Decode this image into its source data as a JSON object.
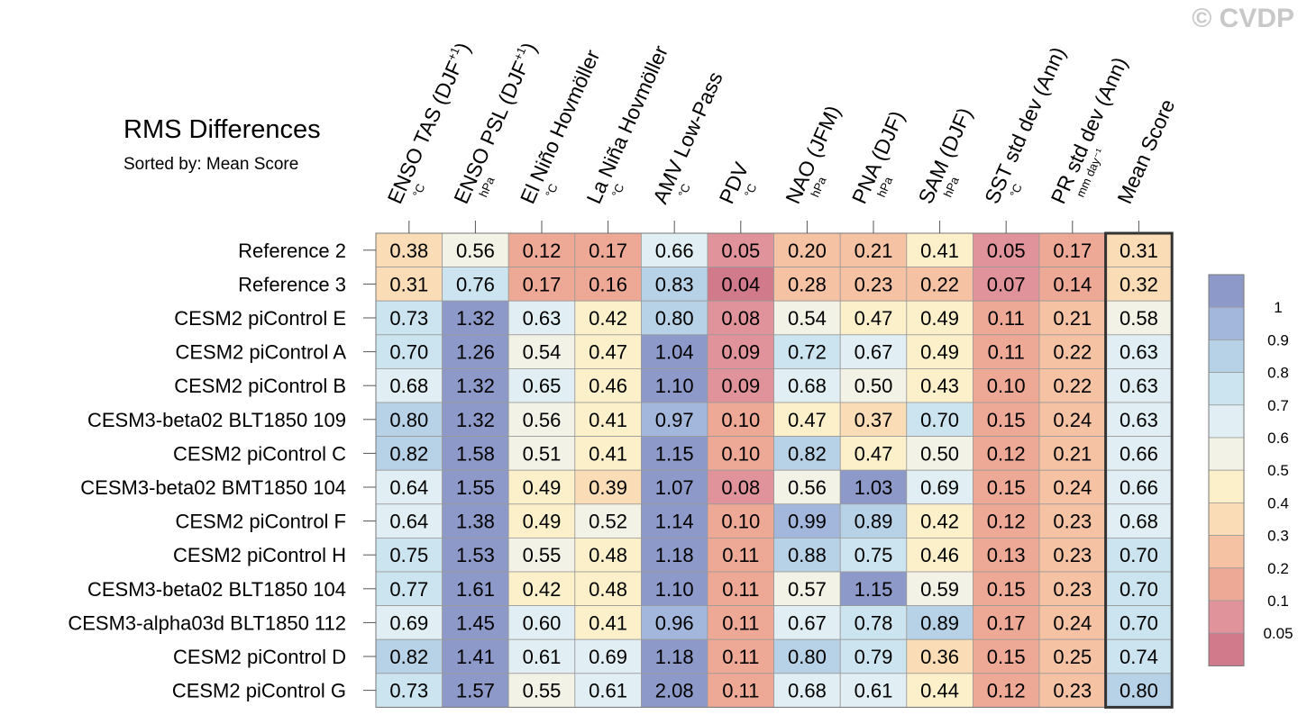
{
  "watermark": "© CVDP",
  "chart_data": {
    "type": "heatmap",
    "title": "RMS Differences",
    "subtitle": "Sorted by: Mean Score",
    "columns": [
      {
        "label": "ENSO TAS (DJF",
        "sup": "+1",
        "close": ")",
        "unit": "°C"
      },
      {
        "label": "ENSO PSL (DJF",
        "sup": "+1",
        "close": ")",
        "unit": "hPa"
      },
      {
        "label": "El Niño Hovmöller",
        "sup": "",
        "close": "",
        "unit": "°C"
      },
      {
        "label": "La Niña Hovmöller",
        "sup": "",
        "close": "",
        "unit": "°C"
      },
      {
        "label": "AMV Low-Pass",
        "sup": "",
        "close": "",
        "unit": "°C"
      },
      {
        "label": "PDV",
        "sup": "",
        "close": "",
        "unit": "°C"
      },
      {
        "label": "NAO (JFM)",
        "sup": "",
        "close": "",
        "unit": "hPa"
      },
      {
        "label": "PNA (DJF)",
        "sup": "",
        "close": "",
        "unit": "hPa"
      },
      {
        "label": "SAM (DJF)",
        "sup": "",
        "close": "",
        "unit": "hPa"
      },
      {
        "label": "SST std dev (Ann)",
        "sup": "",
        "close": "",
        "unit": "°C"
      },
      {
        "label": "PR std dev (Ann)",
        "sup": "",
        "close": "",
        "unit": "mm day⁻¹"
      },
      {
        "label": "Mean Score",
        "sup": "",
        "close": "",
        "unit": ""
      }
    ],
    "rows": [
      "Reference 2",
      "Reference 3",
      "CESM2 piControl E",
      "CESM2 piControl A",
      "CESM2 piControl B",
      "CESM3-beta02 BLT1850 109",
      "CESM2 piControl C",
      "CESM3-beta02 BMT1850 104",
      "CESM2 piControl F",
      "CESM2 piControl H",
      "CESM3-beta02 BLT1850 104",
      "CESM3-alpha03d BLT1850 112",
      "CESM2 piControl D",
      "CESM2 piControl G"
    ],
    "values": [
      [
        0.38,
        0.56,
        0.12,
        0.17,
        0.66,
        0.05,
        0.2,
        0.21,
        0.41,
        0.05,
        0.17,
        0.31
      ],
      [
        0.31,
        0.76,
        0.17,
        0.16,
        0.83,
        0.04,
        0.28,
        0.23,
        0.22,
        0.07,
        0.14,
        0.32
      ],
      [
        0.73,
        1.32,
        0.63,
        0.42,
        0.8,
        0.08,
        0.54,
        0.47,
        0.49,
        0.11,
        0.21,
        0.58
      ],
      [
        0.7,
        1.26,
        0.54,
        0.47,
        1.04,
        0.09,
        0.72,
        0.67,
        0.49,
        0.11,
        0.22,
        0.63
      ],
      [
        0.68,
        1.32,
        0.65,
        0.46,
        1.1,
        0.09,
        0.68,
        0.5,
        0.43,
        0.1,
        0.22,
        0.63
      ],
      [
        0.8,
        1.32,
        0.56,
        0.41,
        0.97,
        0.1,
        0.47,
        0.37,
        0.7,
        0.15,
        0.24,
        0.63
      ],
      [
        0.82,
        1.58,
        0.51,
        0.41,
        1.15,
        0.1,
        0.82,
        0.47,
        0.5,
        0.12,
        0.21,
        0.66
      ],
      [
        0.64,
        1.55,
        0.49,
        0.39,
        1.07,
        0.08,
        0.56,
        1.03,
        0.69,
        0.15,
        0.24,
        0.66
      ],
      [
        0.64,
        1.38,
        0.49,
        0.52,
        1.14,
        0.1,
        0.99,
        0.89,
        0.42,
        0.12,
        0.23,
        0.68
      ],
      [
        0.75,
        1.53,
        0.55,
        0.48,
        1.18,
        0.11,
        0.88,
        0.75,
        0.46,
        0.13,
        0.23,
        0.7
      ],
      [
        0.77,
        1.61,
        0.42,
        0.48,
        1.1,
        0.11,
        0.57,
        1.15,
        0.59,
        0.15,
        0.23,
        0.7
      ],
      [
        0.69,
        1.45,
        0.6,
        0.41,
        0.96,
        0.11,
        0.67,
        0.78,
        0.89,
        0.17,
        0.24,
        0.7
      ],
      [
        0.82,
        1.41,
        0.61,
        0.69,
        1.18,
        0.11,
        0.8,
        0.79,
        0.36,
        0.15,
        0.25,
        0.74
      ],
      [
        0.73,
        1.57,
        0.55,
        0.61,
        2.08,
        0.11,
        0.68,
        0.61,
        0.44,
        0.12,
        0.23,
        0.8
      ]
    ],
    "colorbar": {
      "levels": [
        0.05,
        0.1,
        0.2,
        0.3,
        0.4,
        0.5,
        0.6,
        0.7,
        0.8,
        0.9,
        1
      ],
      "labels": [
        "1",
        "0.9",
        "0.8",
        "0.7",
        "0.6",
        "0.5",
        "0.4",
        "0.3",
        "0.2",
        "0.1",
        "0.05"
      ],
      "colors": [
        "#d07a8c",
        "#e0939a",
        "#eda996",
        "#f5c2a4",
        "#fadcb6",
        "#fcf0ca",
        "#f3f2e6",
        "#e1eff4",
        "#cce4ef",
        "#b7d1e6",
        "#a3b7dd",
        "#8d99c8"
      ]
    }
  }
}
